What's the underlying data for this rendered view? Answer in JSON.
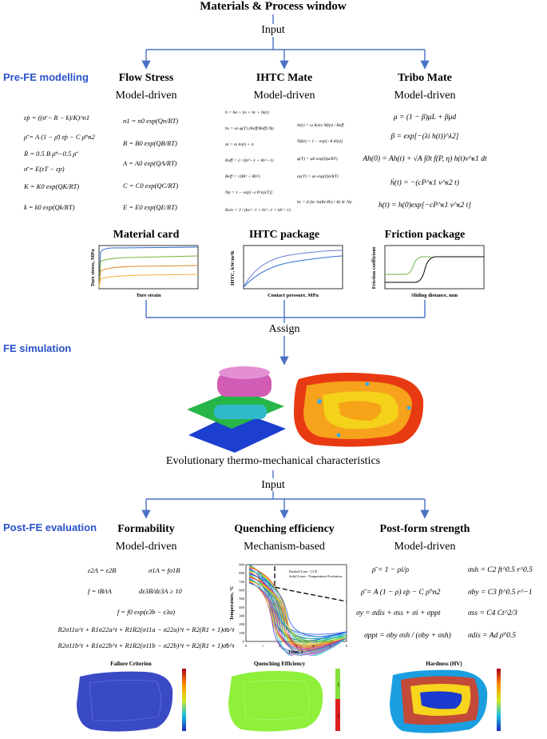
{
  "header": {
    "title": "Materials & Process window",
    "input_label": "Input"
  },
  "sections": {
    "pre_fe": "Pre-FE modelling",
    "fe_sim": "FE simulation",
    "post_fe": "Post-FE evaluation"
  },
  "columns": [
    {
      "title": "Flow Stress",
      "subtitle": "Model-driven"
    },
    {
      "title": "IHTC Mate",
      "subtitle": "Model-driven"
    },
    {
      "title": "Tribo Mate",
      "subtitle": "Model-driven"
    }
  ],
  "equations": {
    "flow": [
      "ε̇p = ((σ̄ − R − k)/K)^n1",
      "ρ̄̇ = A (1 − ρ̄) ε̇p − C ρ̄^n2",
      "Ṙ = 0.5 B ρ̄^−0.5 ρ̄̇",
      "σ̄ = E(εT − εp)",
      "K = K0 exp(QK/RT)",
      "k = k0 exp(Qk/RT)"
    ],
    "flow_right": [
      "n1 = n0 exp(Qn/RT)",
      "B = B0 exp(QB/RT)",
      "A = A0 exp(QA/RT)",
      "C = C0 exp(QC/RT)",
      "E = E0 exp(QE/RT)"
    ],
    "ihtc_left": [
      "h = hα + hs + hc + hi(t)",
      "hs = αs φ(T) (Keff/Reff) Np",
      "αi = m ln(t) + n",
      "Keff = 2 / (kt^−1 + kb^−1)",
      "Reff = √(Rt² + Rb²)",
      "Np = 1 − exp[−γ P/σy(T)]",
      "Kxiv = 3 / (kx^−1 + kt^−1 + kb^−1)"
    ],
    "ihtc_right": [
      "hi(t) = ω Kxiv Nβ(t) / Reff",
      "Nβ(t) = 1 − exp[−θ δi(t)]",
      "φ(T) = φ0 exp(Qφ/RT)",
      "σy(T) = σe exp(Qσ/RT)",
      "hc = β (kc ln(Rc/Rt) / A) δc Np"
    ],
    "tribo": [
      "μ = (1 − β)μL + βμd",
      "β = exp[−(λi h(t))^λ2]",
      "Ah(0) = Ah(t) + √A ∫0t f(P, η) h(t)v^κ1 dt",
      "ḣ(t) = −(cP^κ1 v^κ2 t)",
      "h(t) = h(0)exp[−cP^κ1 v^κ2 t]"
    ]
  },
  "plots": {
    "material_card": {
      "title": "Material card",
      "xlabel": "Ture strain",
      "ylabel": "Ture stress, MPa"
    },
    "ihtc_package": {
      "title": "IHTC package",
      "xlabel": "Contact pressure, MPa",
      "ylabel": "IHTC, kW/m²K"
    },
    "friction_package": {
      "title": "Friction package",
      "xlabel": "Sliding distance, mm",
      "ylabel": "Friction coefficient"
    }
  },
  "assign_label": "Assign",
  "evolutionary_label": "Evolutionary thermo-mechanical characteristics",
  "input_label_2": "Input",
  "post_columns": [
    {
      "title": "Formability",
      "subtitle": "Model-driven"
    },
    {
      "title": "Quenching efficiency",
      "subtitle": "Mechanism-based"
    },
    {
      "title": "Post-form strength",
      "subtitle": "Model-driven"
    }
  ],
  "formability_eqs": [
    "ε2A = ε2B",
    "σ1A = fσ1B",
    "f = tB/tA",
    "dε3B/dε3A ≥ 10",
    "f = f0 exp(ε3b − ε3a)",
    "R2σ11a^t + R1σ22a^t + R1R2(σ11a − σ22a)^t = R2(R1 + 1)σ̄a^t",
    "R2σ11b^t + R1σ22b^t + R1R2(σ11b − σ22b)^t = R2(R1 + 1)σ̄b^t"
  ],
  "quench_plot": {
    "ylabel": "Temperature, °C",
    "xlabel": "Time, s",
    "legend": [
      "Dashed Line - CCP",
      "Solid Lines - Temperature Evolution"
    ],
    "yticks": [
      "0",
      "100",
      "200",
      "300",
      "400",
      "500",
      "600",
      "700",
      "800",
      "900"
    ],
    "xticks": [
      "0",
      "1",
      "2",
      "3",
      "4",
      "5",
      "6"
    ]
  },
  "strength_eqs": [
    "ρ̄ = 1 − ρi/ρ",
    "σsh = C2 ft^0.5 r^0.5",
    "ρ̄̇ = A (1 − ρ) ε̇p − C ρ̄^n2",
    "σby = C3 ft^0.5 r^−1",
    "σy = σdis + σss + σi + σppt",
    "σss = C4 Ct^2/3",
    "σppt = σby σsh / (σby + σsh)",
    "σdis = Ad ρ̄^0.5"
  ],
  "contour_labels": {
    "failure": "Failure Criterion",
    "quench": "Quenching Efficiency",
    "hardness": "Hardness (HV)",
    "quench_bar_top": "Safe",
    "quench_bar_bottom": "Fail"
  }
}
